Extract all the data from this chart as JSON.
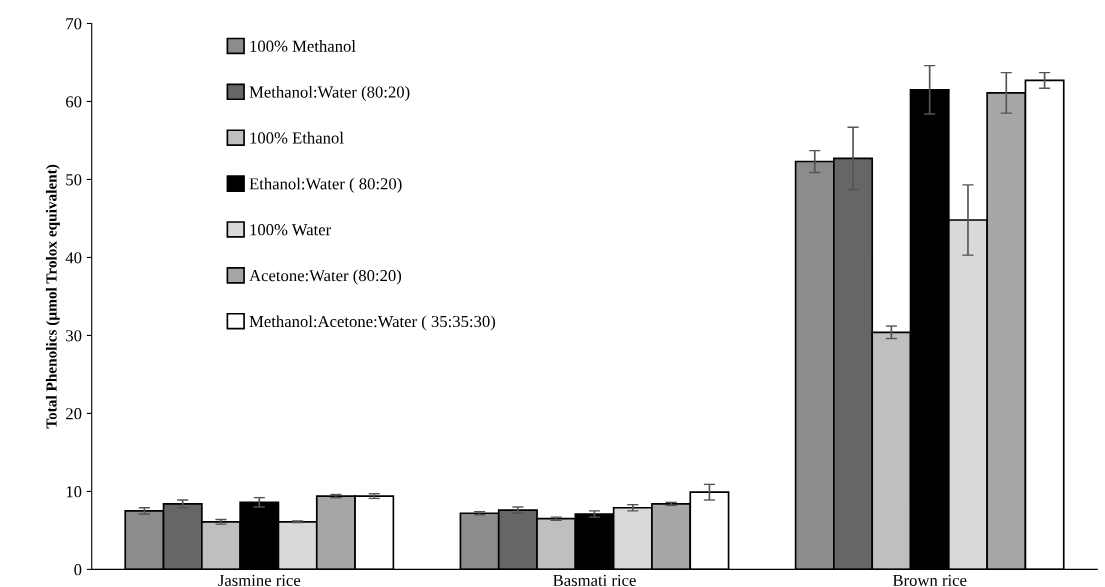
{
  "chart_data": {
    "type": "bar",
    "ylabel": "Total Phenolics (µmol Trolox equivalent)",
    "categories": [
      "Jasmine rice",
      "Basmati rice",
      "Brown rice"
    ],
    "series": [
      {
        "name": "100% Methanol",
        "color": "#8c8c8c",
        "values": [
          7.5,
          7.2,
          52.3
        ],
        "errors": [
          0.4,
          0.2,
          1.4
        ]
      },
      {
        "name": "Methanol:Water (80:20)",
        "color": "#666666",
        "values": [
          8.4,
          7.6,
          52.7
        ],
        "errors": [
          0.5,
          0.4,
          4.0
        ]
      },
      {
        "name": "100% Ethanol",
        "color": "#bfbfbf",
        "values": [
          6.1,
          6.5,
          30.4
        ],
        "errors": [
          0.3,
          0.2,
          0.8
        ]
      },
      {
        "name": "Ethanol:Water ( 80:20)",
        "color": "#000000",
        "values": [
          8.6,
          7.1,
          61.5
        ],
        "errors": [
          0.6,
          0.4,
          3.1
        ]
      },
      {
        "name": "100% Water",
        "color": "#d9d9d9",
        "values": [
          6.1,
          7.9,
          44.8
        ],
        "errors": [
          0.1,
          0.4,
          4.5
        ]
      },
      {
        "name": "Acetone:Water (80:20)",
        "color": "#a6a6a6",
        "values": [
          9.4,
          8.4,
          61.1
        ],
        "errors": [
          0.2,
          0.2,
          2.6
        ]
      },
      {
        "name": "Methanol:Acetone:Water ( 35:35:30)",
        "color": "#ffffff",
        "values": [
          9.4,
          9.9,
          62.7
        ],
        "errors": [
          0.3,
          1.0,
          1.0
        ]
      }
    ],
    "ylim": [
      0,
      70
    ],
    "yticks": [
      0,
      10,
      20,
      30,
      40,
      50,
      60,
      70
    ],
    "grid": false,
    "legend": "top left"
  }
}
